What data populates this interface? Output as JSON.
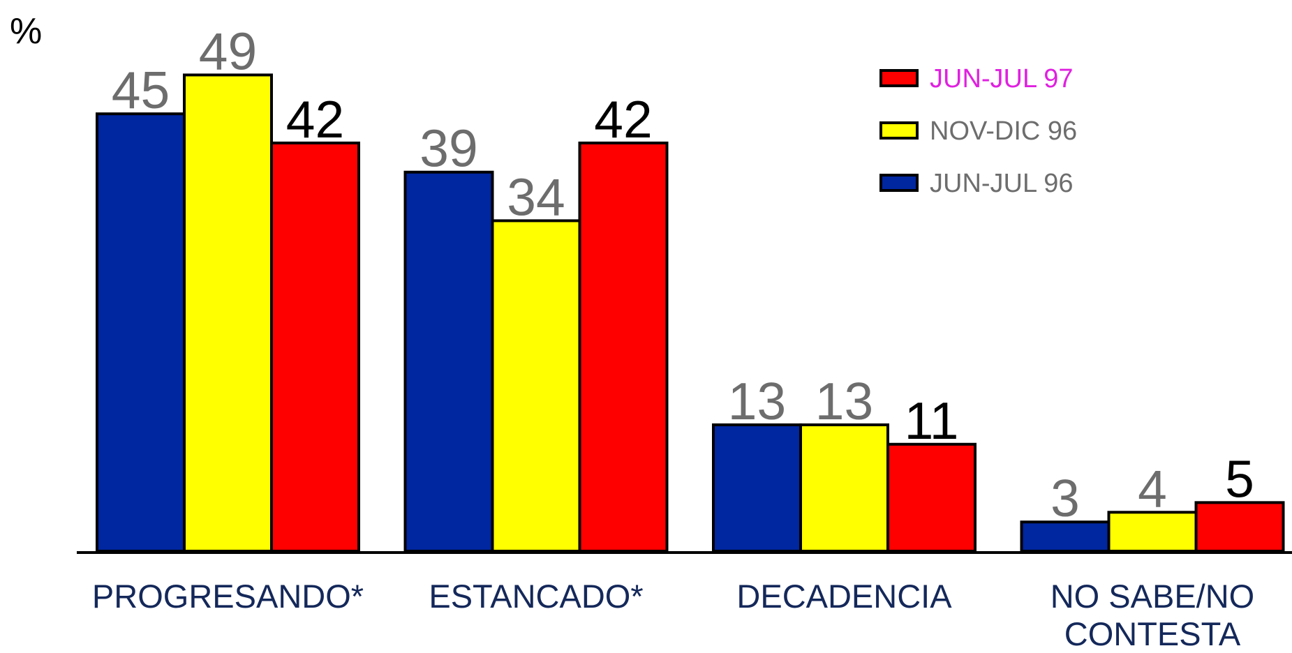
{
  "chart_data": {
    "type": "bar",
    "y_label": "%",
    "categories": [
      "PROGRESANDO*",
      "ESTANCADO*",
      "DECADENCIA",
      "NO SABE/NO CONTESTA"
    ],
    "series": [
      {
        "name": "JUN-JUL 96",
        "color": "#0026a0",
        "label_color": "#6d6d6d",
        "legend_color": "#6d6d6d",
        "values": [
          45,
          39,
          13,
          3
        ]
      },
      {
        "name": "NOV-DIC 96",
        "color": "#ffff00",
        "label_color": "#6d6d6d",
        "legend_color": "#6d6d6d",
        "values": [
          49,
          34,
          13,
          4
        ]
      },
      {
        "name": "JUN-JUL 97",
        "color": "#ff0000",
        "label_color": "#000000",
        "legend_color": "#e020e0",
        "values": [
          42,
          42,
          11,
          5
        ]
      }
    ],
    "legend": "top-right"
  }
}
